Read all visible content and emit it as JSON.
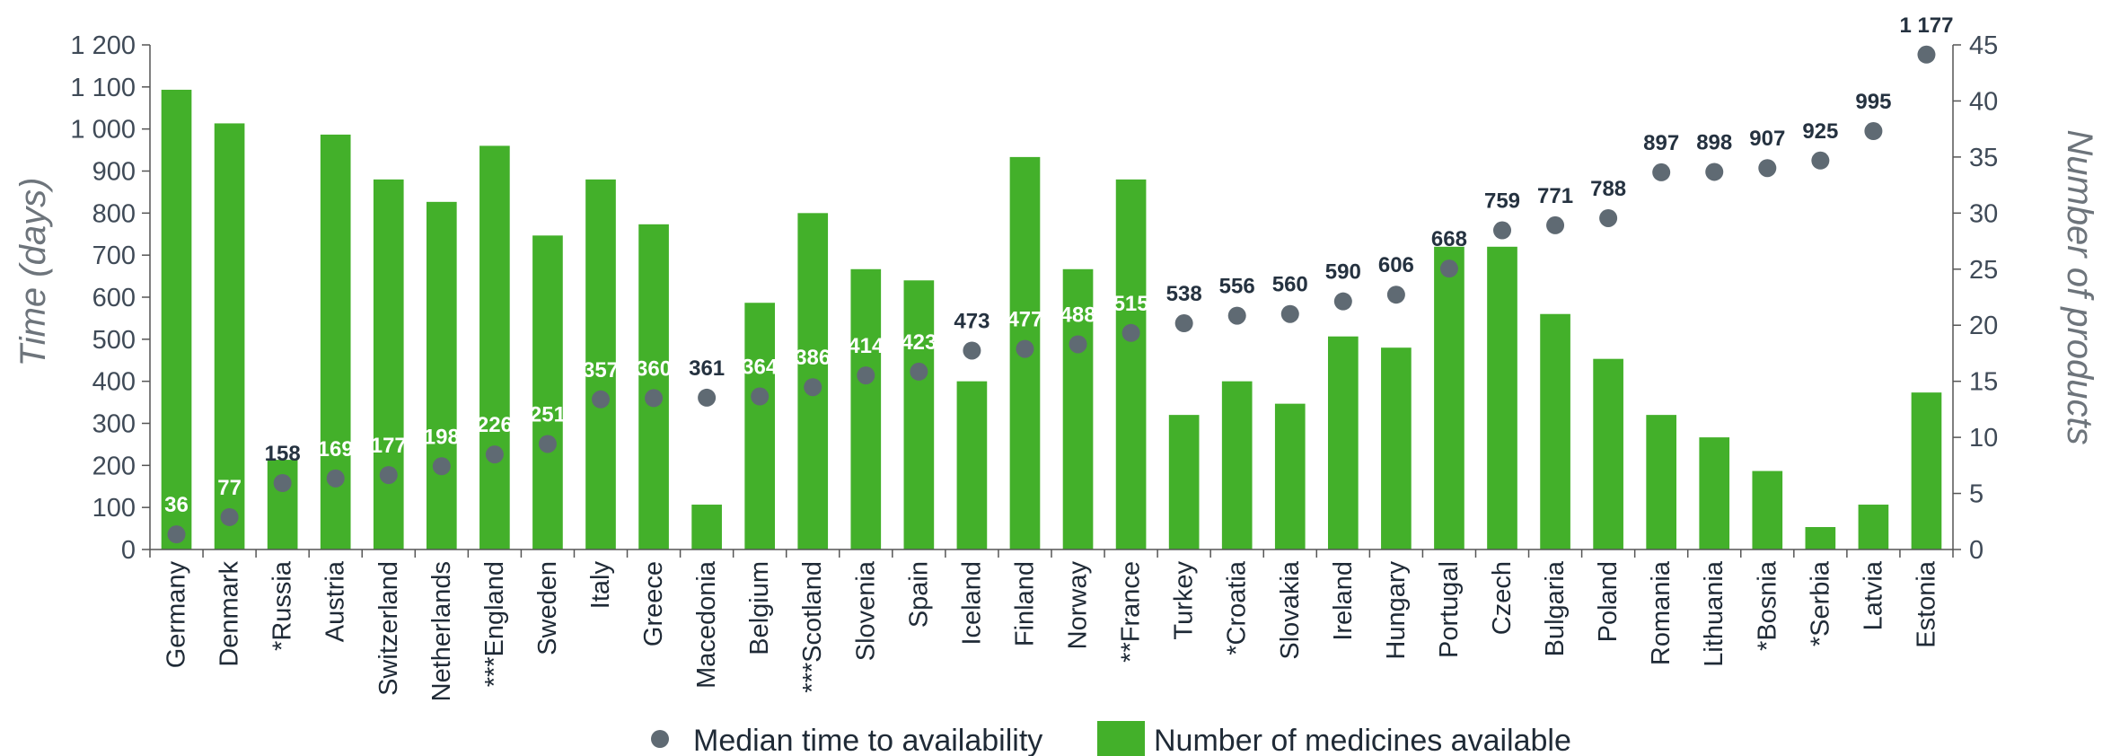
{
  "chart_data": {
    "type": "bar",
    "categories": [
      "Germany",
      "Denmark",
      "*Russia",
      "Austria",
      "Switzerland",
      "Netherlands",
      "***England",
      "Sweden",
      "Italy",
      "Greece",
      "Macedonia",
      "Belgium",
      "***Scotland",
      "Slovenia",
      "Spain",
      "Iceland",
      "Finland",
      "Norway",
      "**France",
      "Turkey",
      "*Croatia",
      "Slovakia",
      "Ireland",
      "Hungary",
      "Portugal",
      "Czech",
      "Bulgaria",
      "Poland",
      "Romania",
      "Lithuania",
      "*Bosnia",
      "*Serbia",
      "Latvia",
      "Estonia"
    ],
    "series": [
      {
        "name": "Number of medicines available",
        "type": "bar",
        "axis": "right",
        "color": "#43b02a",
        "values": [
          41,
          38,
          8,
          37,
          33,
          31,
          36,
          28,
          33,
          29,
          4,
          22,
          30,
          25,
          24,
          15,
          35,
          25,
          33,
          12,
          15,
          13,
          19,
          18,
          27,
          27,
          21,
          17,
          12,
          10,
          7,
          2,
          4,
          14
        ]
      },
      {
        "name": "Median time to availability",
        "type": "scatter",
        "axis": "left",
        "color": "#5f6a73",
        "values": [
          36,
          77,
          158,
          169,
          177,
          198,
          226,
          251,
          357,
          360,
          361,
          364,
          386,
          414,
          423,
          473,
          477,
          488,
          515,
          538,
          556,
          560,
          590,
          606,
          668,
          759,
          771,
          788,
          897,
          898,
          907,
          925,
          995,
          1177
        ],
        "labels": [
          "36",
          "77",
          "158",
          "169",
          "177",
          "198",
          "226",
          "251",
          "357",
          "360",
          "361",
          "364",
          "386",
          "414",
          "423",
          "473",
          "477",
          "488",
          "515",
          "538",
          "556",
          "560",
          "590",
          "606",
          "668",
          "759",
          "771",
          "788",
          "897",
          "898",
          "907",
          "925",
          "995",
          "1 177"
        ]
      }
    ],
    "ylabel": "Time (days)",
    "y2label": "Number of products",
    "ylim": [
      0,
      1200
    ],
    "y2lim": [
      0,
      45
    ],
    "yticks": [
      "0",
      "100",
      "200",
      "300",
      "400",
      "500",
      "600",
      "700",
      "800",
      "900",
      "1 000",
      "1 100",
      "1 200"
    ],
    "y2ticks": [
      "0",
      "5",
      "10",
      "15",
      "20",
      "25",
      "30",
      "35",
      "40",
      "45"
    ],
    "grid": false,
    "legend_position": "bottom-center",
    "legend": [
      "Median time to availability",
      "Number of medicines available"
    ]
  },
  "colors": {
    "bar": "#43b02a",
    "point": "#5f6a73",
    "label_light": "#ffffff",
    "label_dark": "#253240"
  }
}
